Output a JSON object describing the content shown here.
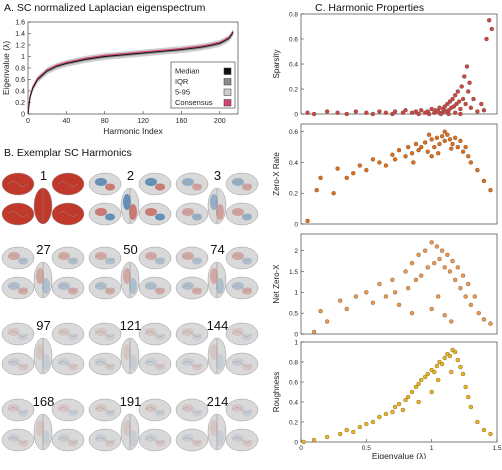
{
  "panels": {
    "a_title": "A. SC normalized Laplacian eigenspectrum",
    "b_title": "B. Exemplar SC Harmonics",
    "c_title": "C. Harmonic Properties"
  },
  "colors": {
    "median": "#111111",
    "iqr": "#8c8c8c",
    "range_5_95": "#cfcfcf",
    "consensus": "#d1437a",
    "sparsity": "#c9474a",
    "zero_x_rate": "#db6f1f",
    "net_zero_x": "#e89a55",
    "roughness": "#e7b722",
    "brain_positive": "#c0392b",
    "brain_negative": "#2e6fa8",
    "brain_neutral": "#d9d9d9"
  },
  "harmonics": [
    "1",
    "2",
    "3",
    "27",
    "50",
    "74",
    "97",
    "121",
    "144",
    "168",
    "191",
    "214"
  ],
  "chart_data": [
    {
      "id": "A",
      "type": "line",
      "title": "A. SC normalized Laplacian eigenspectrum",
      "xlabel": "Harmonic Index",
      "ylabel": "Eigenvalue (λ)",
      "xlim": [
        0,
        219
      ],
      "ylim": [
        0,
        1.6
      ],
      "xticks": [
        "0",
        "40",
        "80",
        "120",
        "160",
        "200"
      ],
      "yticks": [
        "0",
        "0.2",
        "0.4",
        "0.6",
        "0.8",
        "1",
        "1.2",
        "1.4",
        "1.6"
      ],
      "legend_position": "bottom-right",
      "legend": [
        "Median",
        "IQR",
        "5-95",
        "Consensus"
      ],
      "series": [
        {
          "name": "Median",
          "x": [
            0,
            2,
            5,
            10,
            20,
            30,
            40,
            60,
            80,
            100,
            120,
            140,
            160,
            180,
            190,
            200,
            205,
            210,
            214
          ],
          "values": [
            0.0,
            0.28,
            0.45,
            0.6,
            0.75,
            0.83,
            0.88,
            0.95,
            1.0,
            1.03,
            1.06,
            1.09,
            1.12,
            1.16,
            1.19,
            1.23,
            1.27,
            1.32,
            1.42
          ]
        },
        {
          "name": "Consensus",
          "x": [
            0,
            2,
            5,
            10,
            20,
            30,
            40,
            60,
            80,
            100,
            120,
            140,
            160,
            180,
            190,
            200,
            205,
            210,
            214
          ],
          "values": [
            0.0,
            0.3,
            0.47,
            0.62,
            0.77,
            0.85,
            0.9,
            0.97,
            1.02,
            1.05,
            1.08,
            1.11,
            1.14,
            1.18,
            1.21,
            1.25,
            1.29,
            1.34,
            1.44
          ]
        }
      ]
    },
    {
      "id": "C1",
      "type": "scatter",
      "ylabel": "Sparsity",
      "xlim": [
        0,
        1.5
      ],
      "ylim": [
        0,
        0.8
      ],
      "yticks": [
        "0",
        "0.2",
        "0.4",
        "0.6",
        "0.8"
      ],
      "points": [
        [
          0.05,
          0.01
        ],
        [
          0.1,
          0.0
        ],
        [
          0.2,
          0.02
        ],
        [
          0.28,
          0.01
        ],
        [
          0.35,
          0.0
        ],
        [
          0.42,
          0.02
        ],
        [
          0.5,
          0.01
        ],
        [
          0.55,
          0.0
        ],
        [
          0.6,
          0.02
        ],
        [
          0.65,
          0.01
        ],
        [
          0.7,
          0.0
        ],
        [
          0.72,
          0.02
        ],
        [
          0.78,
          0.01
        ],
        [
          0.8,
          0.03
        ],
        [
          0.85,
          0.01
        ],
        [
          0.88,
          0.02
        ],
        [
          0.9,
          0.0
        ],
        [
          0.92,
          0.03
        ],
        [
          0.95,
          0.01
        ],
        [
          0.97,
          0.02
        ],
        [
          1.0,
          0.04
        ],
        [
          1.02,
          0.01
        ],
        [
          1.03,
          0.03
        ],
        [
          1.05,
          0.02
        ],
        [
          1.06,
          0.05
        ],
        [
          1.08,
          0.01
        ],
        [
          1.09,
          0.04
        ],
        [
          1.1,
          0.06
        ],
        [
          1.11,
          0.02
        ],
        [
          1.12,
          0.08
        ],
        [
          1.13,
          0.03
        ],
        [
          1.14,
          0.1
        ],
        [
          1.15,
          0.05
        ],
        [
          1.16,
          0.12
        ],
        [
          1.17,
          0.06
        ],
        [
          1.18,
          0.15
        ],
        [
          1.19,
          0.08
        ],
        [
          1.2,
          0.18
        ],
        [
          1.21,
          0.1
        ],
        [
          1.22,
          0.04
        ],
        [
          1.23,
          0.22
        ],
        [
          1.24,
          0.12
        ],
        [
          1.25,
          0.3
        ],
        [
          1.26,
          0.08
        ],
        [
          1.27,
          0.38
        ],
        [
          1.28,
          0.18
        ],
        [
          1.29,
          0.25
        ],
        [
          1.3,
          0.05
        ],
        [
          1.32,
          0.12
        ],
        [
          1.35,
          0.02
        ],
        [
          1.38,
          0.08
        ],
        [
          1.4,
          0.03
        ],
        [
          1.42,
          0.6
        ],
        [
          1.44,
          0.75
        ],
        [
          1.46,
          0.68
        ],
        [
          0.98,
          0.0
        ],
        [
          1.07,
          0.0
        ],
        [
          1.13,
          0.0
        ],
        [
          1.18,
          0.01
        ],
        [
          1.22,
          0.0
        ]
      ]
    },
    {
      "id": "C2",
      "type": "scatter",
      "ylabel": "Zero-X Rate",
      "xlim": [
        0,
        1.5
      ],
      "ylim": [
        0,
        0.65
      ],
      "yticks": [
        "0",
        "0.2",
        "0.4",
        "0.6"
      ],
      "points": [
        [
          0.05,
          0.02
        ],
        [
          0.12,
          0.22
        ],
        [
          0.15,
          0.3
        ],
        [
          0.25,
          0.2
        ],
        [
          0.28,
          0.36
        ],
        [
          0.35,
          0.3
        ],
        [
          0.4,
          0.33
        ],
        [
          0.45,
          0.38
        ],
        [
          0.5,
          0.35
        ],
        [
          0.55,
          0.42
        ],
        [
          0.6,
          0.4
        ],
        [
          0.65,
          0.38
        ],
        [
          0.7,
          0.45
        ],
        [
          0.72,
          0.42
        ],
        [
          0.75,
          0.48
        ],
        [
          0.8,
          0.44
        ],
        [
          0.82,
          0.5
        ],
        [
          0.85,
          0.46
        ],
        [
          0.88,
          0.52
        ],
        [
          0.9,
          0.48
        ],
        [
          0.92,
          0.5
        ],
        [
          0.95,
          0.53
        ],
        [
          0.97,
          0.47
        ],
        [
          1.0,
          0.55
        ],
        [
          1.02,
          0.5
        ],
        [
          1.04,
          0.56
        ],
        [
          1.06,
          0.52
        ],
        [
          1.08,
          0.57
        ],
        [
          1.1,
          0.54
        ],
        [
          1.12,
          0.58
        ],
        [
          1.14,
          0.55
        ],
        [
          1.16,
          0.52
        ],
        [
          1.18,
          0.56
        ],
        [
          1.2,
          0.5
        ],
        [
          1.22,
          0.54
        ],
        [
          1.24,
          0.47
        ],
        [
          1.26,
          0.5
        ],
        [
          1.28,
          0.44
        ],
        [
          1.3,
          0.4
        ],
        [
          1.35,
          0.35
        ],
        [
          1.4,
          0.28
        ],
        [
          1.45,
          0.22
        ],
        [
          1.0,
          0.44
        ],
        [
          1.05,
          0.46
        ],
        [
          1.1,
          0.6
        ],
        [
          0.98,
          0.58
        ],
        [
          0.86,
          0.4
        ],
        [
          1.15,
          0.49
        ]
      ]
    },
    {
      "id": "C3",
      "type": "scatter",
      "ylabel": "Net Zero-X",
      "xlim": [
        0,
        1.5
      ],
      "ylim": [
        0,
        2.4
      ],
      "yticks": [
        "0",
        "0.5",
        "1",
        "1.5",
        "2"
      ],
      "points": [
        [
          0.1,
          0.05
        ],
        [
          0.15,
          0.55
        ],
        [
          0.2,
          0.3
        ],
        [
          0.3,
          0.8
        ],
        [
          0.35,
          0.6
        ],
        [
          0.42,
          0.9
        ],
        [
          0.5,
          1.0
        ],
        [
          0.55,
          0.75
        ],
        [
          0.6,
          1.2
        ],
        [
          0.65,
          0.9
        ],
        [
          0.7,
          1.3
        ],
        [
          0.72,
          1.0
        ],
        [
          0.75,
          0.7
        ],
        [
          0.8,
          1.5
        ],
        [
          0.82,
          1.1
        ],
        [
          0.85,
          1.7
        ],
        [
          0.88,
          1.3
        ],
        [
          0.9,
          1.9
        ],
        [
          0.92,
          1.4
        ],
        [
          0.95,
          2.0
        ],
        [
          0.97,
          1.6
        ],
        [
          1.0,
          2.2
        ],
        [
          1.02,
          1.7
        ],
        [
          1.04,
          2.1
        ],
        [
          1.06,
          1.8
        ],
        [
          1.08,
          2.0
        ],
        [
          1.1,
          1.6
        ],
        [
          1.12,
          1.9
        ],
        [
          1.14,
          1.5
        ],
        [
          1.16,
          1.75
        ],
        [
          1.18,
          1.3
        ],
        [
          1.2,
          1.6
        ],
        [
          1.22,
          1.1
        ],
        [
          1.24,
          1.4
        ],
        [
          1.26,
          0.9
        ],
        [
          1.28,
          1.2
        ],
        [
          1.3,
          0.7
        ],
        [
          1.33,
          0.9
        ],
        [
          1.36,
          0.5
        ],
        [
          1.4,
          0.35
        ],
        [
          1.45,
          0.25
        ],
        [
          1.0,
          0.6
        ],
        [
          1.05,
          0.9
        ],
        [
          1.1,
          0.45
        ],
        [
          1.15,
          0.3
        ],
        [
          0.85,
          0.5
        ]
      ]
    },
    {
      "id": "C4",
      "type": "scatter",
      "ylabel": "Roughness",
      "xlabel": "Eigenvalue (λ)",
      "xlim": [
        0,
        1.5
      ],
      "ylim": [
        0,
        1.0
      ],
      "xticks": [
        "0",
        "0.5",
        "1",
        "1.5"
      ],
      "yticks": [
        "0",
        "0.2",
        "0.4",
        "0.6",
        "0.8",
        "1"
      ],
      "points": [
        [
          0.02,
          0.0
        ],
        [
          0.1,
          0.02
        ],
        [
          0.2,
          0.05
        ],
        [
          0.3,
          0.08
        ],
        [
          0.35,
          0.12
        ],
        [
          0.4,
          0.1
        ],
        [
          0.45,
          0.15
        ],
        [
          0.5,
          0.18
        ],
        [
          0.55,
          0.2
        ],
        [
          0.6,
          0.25
        ],
        [
          0.65,
          0.28
        ],
        [
          0.7,
          0.3
        ],
        [
          0.72,
          0.35
        ],
        [
          0.75,
          0.38
        ],
        [
          0.8,
          0.42
        ],
        [
          0.82,
          0.45
        ],
        [
          0.85,
          0.5
        ],
        [
          0.88,
          0.55
        ],
        [
          0.9,
          0.58
        ],
        [
          0.92,
          0.62
        ],
        [
          0.95,
          0.65
        ],
        [
          0.97,
          0.68
        ],
        [
          1.0,
          0.72
        ],
        [
          1.02,
          0.7
        ],
        [
          1.04,
          0.76
        ],
        [
          1.06,
          0.8
        ],
        [
          1.08,
          0.78
        ],
        [
          1.1,
          0.84
        ],
        [
          1.12,
          0.88
        ],
        [
          1.14,
          0.86
        ],
        [
          1.16,
          0.92
        ],
        [
          1.18,
          0.9
        ],
        [
          1.2,
          0.82
        ],
        [
          1.22,
          0.75
        ],
        [
          1.24,
          0.68
        ],
        [
          1.26,
          0.55
        ],
        [
          1.28,
          0.45
        ],
        [
          1.3,
          0.35
        ],
        [
          1.35,
          0.2
        ],
        [
          1.4,
          0.12
        ],
        [
          1.45,
          0.08
        ],
        [
          0.9,
          0.4
        ],
        [
          1.0,
          0.5
        ],
        [
          1.05,
          0.62
        ],
        [
          1.15,
          0.7
        ],
        [
          0.78,
          0.32
        ]
      ]
    }
  ]
}
